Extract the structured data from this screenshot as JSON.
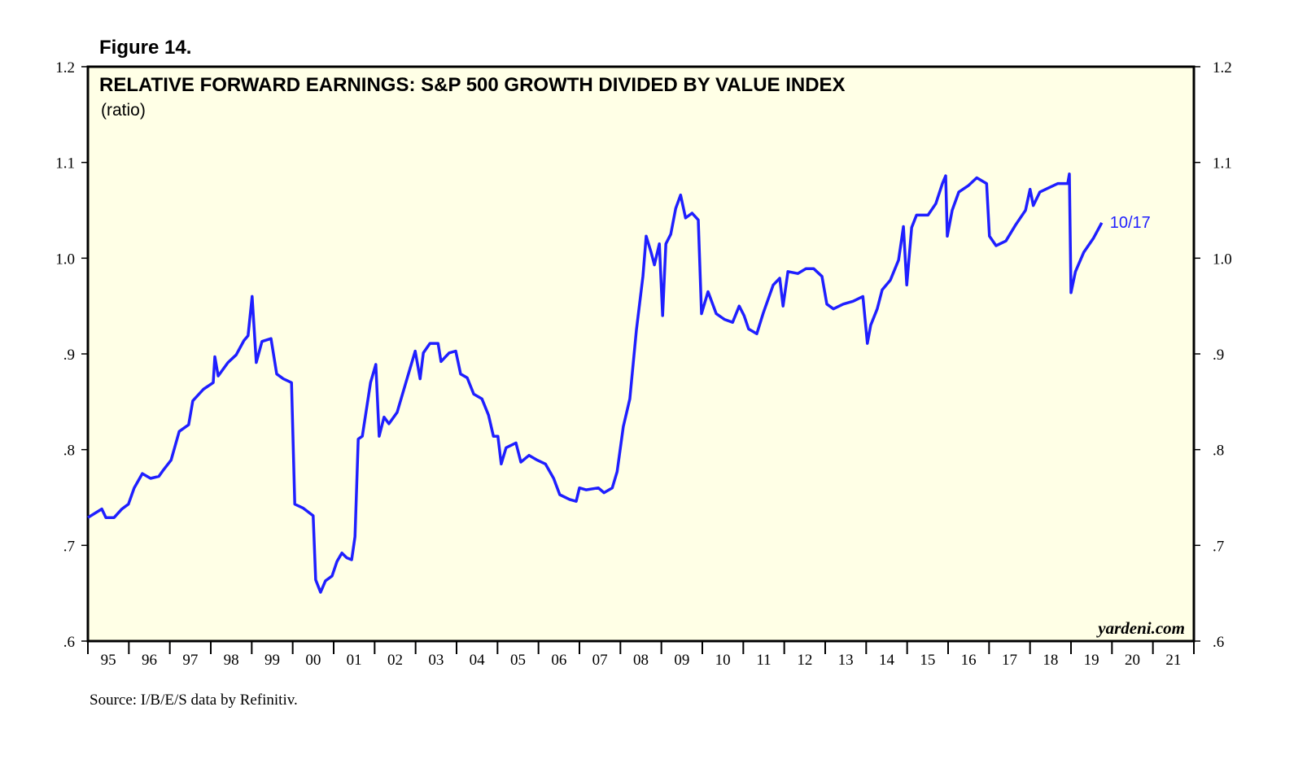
{
  "chart_data": {
    "type": "line",
    "figure_label": "Figure 14.",
    "title": "RELATIVE FORWARD EARNINGS: S&P 500 GROWTH DIVIDED BY VALUE INDEX",
    "subtitle": "(ratio)",
    "annotation": "10/17",
    "watermark": "yardeni.com",
    "source": "Source: I/B/E/S data by Refinitiv.",
    "color": "#1f1fff",
    "background": "#ffffe6",
    "xlim": [
      1995,
      2022
    ],
    "xticks": [
      {
        "value": 1995.5,
        "label": "95"
      },
      {
        "value": 1996.5,
        "label": "96"
      },
      {
        "value": 1997.5,
        "label": "97"
      },
      {
        "value": 1998.5,
        "label": "98"
      },
      {
        "value": 1999.5,
        "label": "99"
      },
      {
        "value": 2000.5,
        "label": "00"
      },
      {
        "value": 2001.5,
        "label": "01"
      },
      {
        "value": 2002.5,
        "label": "02"
      },
      {
        "value": 2003.5,
        "label": "03"
      },
      {
        "value": 2004.5,
        "label": "04"
      },
      {
        "value": 2005.5,
        "label": "05"
      },
      {
        "value": 2006.5,
        "label": "06"
      },
      {
        "value": 2007.5,
        "label": "07"
      },
      {
        "value": 2008.5,
        "label": "08"
      },
      {
        "value": 2009.5,
        "label": "09"
      },
      {
        "value": 2010.5,
        "label": "10"
      },
      {
        "value": 2011.5,
        "label": "11"
      },
      {
        "value": 2012.5,
        "label": "12"
      },
      {
        "value": 2013.5,
        "label": "13"
      },
      {
        "value": 2014.5,
        "label": "14"
      },
      {
        "value": 2015.5,
        "label": "15"
      },
      {
        "value": 2016.5,
        "label": "16"
      },
      {
        "value": 2017.5,
        "label": "17"
      },
      {
        "value": 2018.5,
        "label": "18"
      },
      {
        "value": 2019.5,
        "label": "19"
      },
      {
        "value": 2020.5,
        "label": "20"
      },
      {
        "value": 2021.5,
        "label": "21"
      }
    ],
    "ylim": [
      0.6,
      1.2
    ],
    "yticks": [
      {
        "value": 0.6,
        "label": ".6"
      },
      {
        "value": 0.7,
        "label": ".7"
      },
      {
        "value": 0.8,
        "label": ".8"
      },
      {
        "value": 0.9,
        "label": ".9"
      },
      {
        "value": 1.0,
        "label": "1.0"
      },
      {
        "value": 1.1,
        "label": "1.1"
      },
      1.2
    ],
    "x": [
      1995.0,
      1995.34,
      1995.44,
      1995.64,
      1995.83,
      1995.99,
      1996.13,
      1996.33,
      1996.53,
      1996.73,
      1996.83,
      1997.03,
      1997.23,
      1997.46,
      1997.56,
      1997.82,
      1998.06,
      1998.1,
      1998.18,
      1998.42,
      1998.62,
      1998.81,
      1998.91,
      1999.01,
      1999.11,
      1999.25,
      1999.47,
      1999.61,
      1999.77,
      1999.97,
      2000.05,
      2000.25,
      2000.5,
      2000.56,
      2000.68,
      2000.8,
      2000.96,
      2001.08,
      2001.2,
      2001.32,
      2001.44,
      2001.52,
      2001.6,
      2001.7,
      2001.9,
      2002.03,
      2002.11,
      2002.23,
      2002.35,
      2002.55,
      2002.79,
      2002.99,
      2003.11,
      2003.19,
      2003.35,
      2003.55,
      2003.62,
      2003.82,
      2003.98,
      2004.1,
      2004.26,
      2004.42,
      2004.62,
      2004.78,
      2004.9,
      2005.01,
      2005.09,
      2005.21,
      2005.45,
      2005.57,
      2005.77,
      2005.97,
      2006.17,
      2006.37,
      2006.52,
      2006.76,
      2006.92,
      2007.0,
      2007.16,
      2007.46,
      2007.6,
      2007.8,
      2007.92,
      2008.07,
      2008.23,
      2008.39,
      2008.55,
      2008.63,
      2008.75,
      2008.83,
      2008.95,
      2009.03,
      2009.11,
      2009.23,
      2009.35,
      2009.47,
      2009.59,
      2009.75,
      2009.9,
      2009.98,
      2010.14,
      2010.34,
      2010.54,
      2010.74,
      2010.9,
      2011.02,
      2011.13,
      2011.33,
      2011.49,
      2011.73,
      2011.89,
      2011.97,
      2012.09,
      2012.33,
      2012.53,
      2012.72,
      2012.92,
      2013.04,
      2013.2,
      2013.44,
      2013.68,
      2013.92,
      2014.03,
      2014.11,
      2014.27,
      2014.39,
      2014.59,
      2014.79,
      2014.91,
      2014.99,
      2015.11,
      2015.23,
      2015.51,
      2015.7,
      2015.86,
      2015.94,
      2015.98,
      2016.1,
      2016.26,
      2016.5,
      2016.7,
      2016.94,
      2017.01,
      2017.17,
      2017.41,
      2017.65,
      2017.89,
      2018.0,
      2018.08,
      2018.24,
      2018.48,
      2018.68,
      2018.92,
      2018.96,
      2019.0,
      2019.11,
      2019.31,
      2019.55,
      2019.75
    ],
    "values": [
      0.729,
      0.738,
      0.729,
      0.729,
      0.738,
      0.743,
      0.76,
      0.775,
      0.77,
      0.772,
      0.778,
      0.789,
      0.819,
      0.826,
      0.851,
      0.863,
      0.87,
      0.897,
      0.877,
      0.891,
      0.899,
      0.914,
      0.919,
      0.96,
      0.891,
      0.913,
      0.916,
      0.879,
      0.874,
      0.87,
      0.743,
      0.739,
      0.731,
      0.664,
      0.651,
      0.663,
      0.668,
      0.683,
      0.692,
      0.687,
      0.685,
      0.709,
      0.811,
      0.814,
      0.87,
      0.889,
      0.814,
      0.834,
      0.827,
      0.839,
      0.874,
      0.903,
      0.874,
      0.901,
      0.911,
      0.911,
      0.892,
      0.901,
      0.903,
      0.879,
      0.875,
      0.858,
      0.853,
      0.836,
      0.814,
      0.814,
      0.785,
      0.802,
      0.807,
      0.787,
      0.794,
      0.789,
      0.785,
      0.77,
      0.753,
      0.748,
      0.746,
      0.76,
      0.758,
      0.76,
      0.755,
      0.76,
      0.777,
      0.824,
      0.853,
      0.925,
      0.981,
      1.023,
      1.006,
      0.993,
      1.015,
      0.94,
      1.015,
      1.025,
      1.052,
      1.066,
      1.042,
      1.047,
      1.04,
      0.942,
      0.965,
      0.942,
      0.936,
      0.933,
      0.95,
      0.94,
      0.926,
      0.921,
      0.943,
      0.972,
      0.979,
      0.95,
      0.986,
      0.984,
      0.989,
      0.989,
      0.981,
      0.952,
      0.947,
      0.952,
      0.955,
      0.96,
      0.911,
      0.93,
      0.947,
      0.967,
      0.977,
      0.998,
      1.033,
      0.972,
      1.032,
      1.045,
      1.045,
      1.057,
      1.078,
      1.086,
      1.023,
      1.05,
      1.069,
      1.076,
      1.084,
      1.078,
      1.023,
      1.013,
      1.018,
      1.035,
      1.05,
      1.072,
      1.055,
      1.069,
      1.074,
      1.078,
      1.078,
      1.088,
      0.964,
      0.986,
      1.006,
      1.021,
      1.037
    ]
  }
}
